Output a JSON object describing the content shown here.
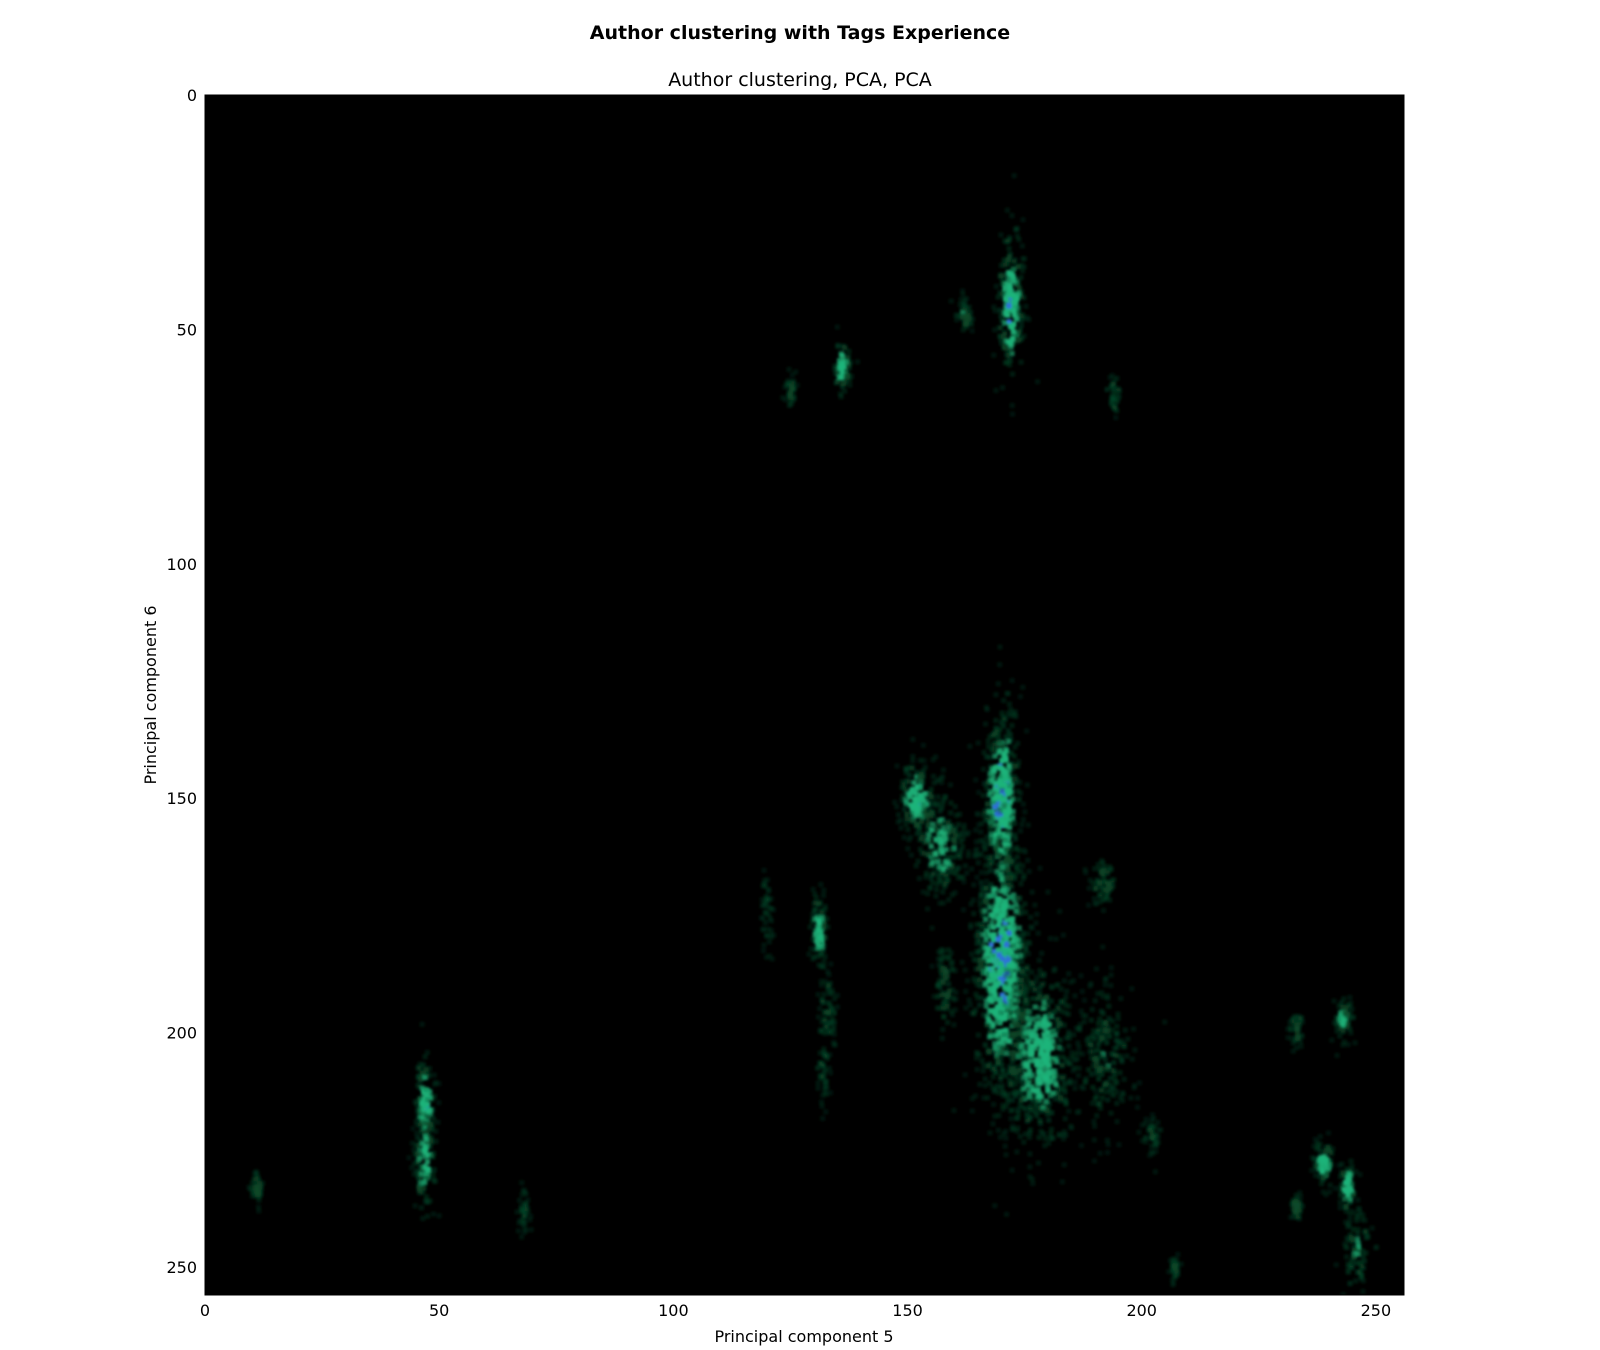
{
  "chart_data": {
    "type": "heatmap",
    "title": "Author clustering with Tags Experience",
    "subtitle": "Author clustering, PCA, PCA",
    "xlabel": "Principal component 5",
    "ylabel": "Principal component 6",
    "xlim": [
      0,
      256
    ],
    "ylim": [
      256,
      0
    ],
    "x_ticks": [
      "0",
      "50",
      "100",
      "150",
      "200",
      "250"
    ],
    "y_ticks": [
      "0",
      "50",
      "100",
      "150",
      "200",
      "250"
    ],
    "y_axis_inverted": true,
    "grid": false,
    "background_color": "#000000",
    "colors": {
      "low": "#0a4a2a",
      "mid": "#1fb47a",
      "high": "#2f6ed8"
    },
    "clusters": [
      {
        "x": 172,
        "y": 45,
        "sx": 1.5,
        "sy": 8,
        "intensity": 0.85
      },
      {
        "x": 162,
        "y": 47,
        "sx": 0.8,
        "sy": 2,
        "intensity": 0.4
      },
      {
        "x": 136,
        "y": 58,
        "sx": 1.0,
        "sy": 3,
        "intensity": 0.75
      },
      {
        "x": 125,
        "y": 63,
        "sx": 0.6,
        "sy": 1.5,
        "intensity": 0.2
      },
      {
        "x": 194,
        "y": 64,
        "sx": 0.7,
        "sy": 2,
        "intensity": 0.15
      },
      {
        "x": 170,
        "y": 150,
        "sx": 2,
        "sy": 10,
        "intensity": 1.0
      },
      {
        "x": 152,
        "y": 150,
        "sx": 2,
        "sy": 4,
        "intensity": 0.85
      },
      {
        "x": 157,
        "y": 160,
        "sx": 3,
        "sy": 6,
        "intensity": 0.6
      },
      {
        "x": 170,
        "y": 185,
        "sx": 3,
        "sy": 15,
        "intensity": 1.0
      },
      {
        "x": 178,
        "y": 205,
        "sx": 4,
        "sy": 10,
        "intensity": 0.75
      },
      {
        "x": 192,
        "y": 205,
        "sx": 3,
        "sy": 8,
        "intensity": 0.4
      },
      {
        "x": 192,
        "y": 168,
        "sx": 1.5,
        "sy": 3,
        "intensity": 0.35
      },
      {
        "x": 131,
        "y": 178,
        "sx": 1.0,
        "sy": 4,
        "intensity": 0.75
      },
      {
        "x": 133,
        "y": 195,
        "sx": 1.0,
        "sy": 4,
        "intensity": 0.3
      },
      {
        "x": 132,
        "y": 208,
        "sx": 0.7,
        "sy": 4,
        "intensity": 0.2
      },
      {
        "x": 158,
        "y": 190,
        "sx": 1.2,
        "sy": 6,
        "intensity": 0.35
      },
      {
        "x": 120,
        "y": 175,
        "sx": 0.6,
        "sy": 5,
        "intensity": 0.15
      },
      {
        "x": 47,
        "y": 215,
        "sx": 1.0,
        "sy": 5,
        "intensity": 0.85
      },
      {
        "x": 47,
        "y": 227,
        "sx": 1.2,
        "sy": 6,
        "intensity": 0.7
      },
      {
        "x": 11,
        "y": 233,
        "sx": 0.7,
        "sy": 2,
        "intensity": 0.3
      },
      {
        "x": 68,
        "y": 238,
        "sx": 0.8,
        "sy": 2,
        "intensity": 0.12
      },
      {
        "x": 243,
        "y": 197,
        "sx": 1.0,
        "sy": 2.5,
        "intensity": 0.55
      },
      {
        "x": 233,
        "y": 200,
        "sx": 0.7,
        "sy": 2,
        "intensity": 0.3
      },
      {
        "x": 239,
        "y": 228,
        "sx": 1.2,
        "sy": 2.5,
        "intensity": 0.75
      },
      {
        "x": 244,
        "y": 233,
        "sx": 1.0,
        "sy": 3,
        "intensity": 0.7
      },
      {
        "x": 233,
        "y": 237,
        "sx": 0.6,
        "sy": 1.5,
        "intensity": 0.4
      },
      {
        "x": 246,
        "y": 246,
        "sx": 1.5,
        "sy": 4,
        "intensity": 0.45
      },
      {
        "x": 202,
        "y": 222,
        "sx": 1.0,
        "sy": 2,
        "intensity": 0.2
      },
      {
        "x": 207,
        "y": 250,
        "sx": 0.5,
        "sy": 1.5,
        "intensity": 0.1
      }
    ]
  }
}
